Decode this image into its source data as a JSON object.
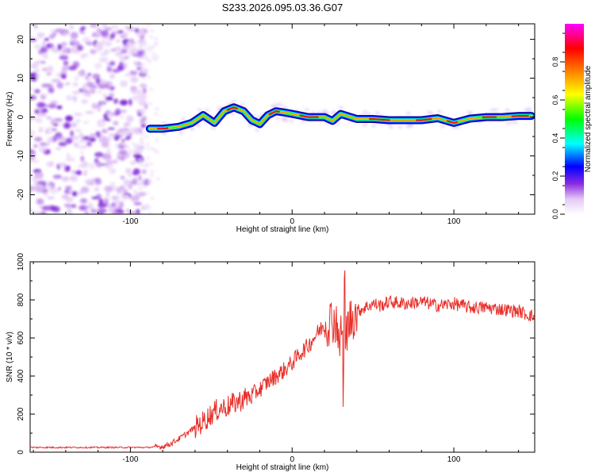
{
  "title": "S233.2026.095.03.36.G07",
  "chart_data": [
    {
      "type": "heatmap",
      "xlabel": "Height of straight line (km)",
      "ylabel": "Frequency (Hz)",
      "xlim": [
        -162,
        150
      ],
      "ylim": [
        -25,
        24
      ],
      "xticks": [
        -100,
        0,
        100
      ],
      "yticks": [
        -20,
        -10,
        0,
        10,
        20
      ],
      "colorbar": {
        "label": "Normalized spectral amplitude",
        "range": [
          0.0,
          1.0
        ],
        "ticks": [
          0.0,
          0.2,
          0.4,
          0.6,
          0.8
        ],
        "tick_labels": [
          "0.0",
          "0.2",
          "0.4",
          "0.6",
          "0.8"
        ],
        "colors": [
          "#ffffff",
          "#e4c8f4",
          "#8a2be2",
          "#0000ff",
          "#00ffff",
          "#00ff00",
          "#ffff00",
          "#ff8000",
          "#ff0000",
          "#ff00ff"
        ]
      },
      "ridge": {
        "x": [
          -88,
          -80,
          -70,
          -62,
          -55,
          -48,
          -42,
          -36,
          -30,
          -25,
          -20,
          -15,
          -10,
          -5,
          0,
          10,
          20,
          25,
          30,
          40,
          50,
          60,
          70,
          80,
          90,
          100,
          110,
          120,
          130,
          140,
          148
        ],
        "frequency": [
          -3,
          -3,
          -2.5,
          -1.5,
          0.5,
          -1.5,
          1.5,
          2.5,
          1.5,
          -0.8,
          -1.8,
          0.5,
          1.5,
          1.2,
          0.8,
          0,
          0,
          -1,
          0.8,
          -0.5,
          -0.5,
          -0.8,
          -0.8,
          -0.8,
          -0.3,
          -1.5,
          -0.4,
          0,
          0,
          0.3,
          0.3
        ]
      }
    },
    {
      "type": "line",
      "xlabel": "Height of straight line (km)",
      "ylabel": "SNR (10 * v/v)",
      "xlim": [
        -162,
        150
      ],
      "ylim": [
        0,
        1000
      ],
      "xticks": [
        -100,
        0,
        100
      ],
      "yticks": [
        0,
        200,
        400,
        600,
        800,
        1000
      ],
      "series": [
        {
          "name": "SNR",
          "color": "#e8302a",
          "x": [
            -162,
            -150,
            -140,
            -130,
            -120,
            -110,
            -100,
            -90,
            -80,
            -75,
            -70,
            -65,
            -60,
            -55,
            -50,
            -45,
            -40,
            -35,
            -30,
            -25,
            -20,
            -15,
            -10,
            -5,
            0,
            5,
            10,
            15,
            20,
            25,
            28,
            30,
            32,
            35,
            38,
            40,
            45,
            50,
            55,
            60,
            70,
            80,
            90,
            100,
            110,
            120,
            130,
            140,
            150
          ],
          "y": [
            25,
            25,
            25,
            25,
            25,
            25,
            25,
            25,
            30,
            45,
            70,
            100,
            130,
            160,
            200,
            230,
            240,
            260,
            280,
            300,
            330,
            370,
            400,
            430,
            470,
            520,
            560,
            620,
            670,
            700,
            680,
            550,
            600,
            680,
            720,
            740,
            760,
            780,
            770,
            790,
            780,
            790,
            770,
            780,
            760,
            760,
            750,
            740,
            710
          ]
        }
      ]
    }
  ]
}
